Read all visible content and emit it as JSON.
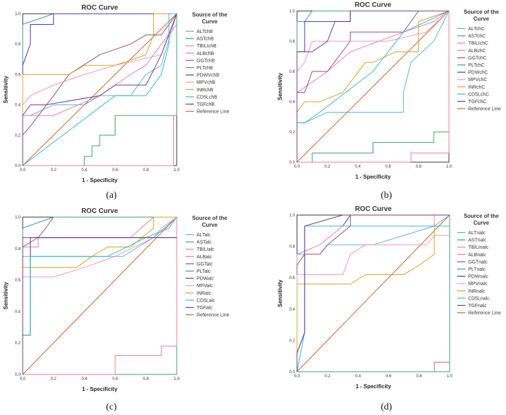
{
  "chart_data": [
    {
      "type": "line",
      "panel": "a",
      "caption": "(a)",
      "title": "ROC Curve",
      "xlabel": "1 - Specificity",
      "ylabel": "Sensitivity",
      "xlim": [
        0,
        1
      ],
      "ylim": [
        0,
        1
      ],
      "xticks": [
        "0.0",
        "0.2",
        "0.4",
        "0.6",
        "0.8",
        "1.0"
      ],
      "yticks": [
        "0.0",
        "0.2",
        "0.4",
        "0.6",
        "0.8",
        "1.0"
      ],
      "legend_title": [
        "Source of the",
        "Curve"
      ],
      "series": [
        {
          "name": "ALTchB",
          "color": "#5aaee0",
          "x": [
            0,
            0,
            0.05,
            0.2,
            0.4,
            0.5,
            0.7,
            0.75,
            0.8,
            0.9,
            1.0
          ],
          "y": [
            0,
            0.33,
            0.33,
            0.4,
            0.4,
            0.46,
            0.46,
            0.53,
            0.6,
            0.66,
            1.0
          ]
        },
        {
          "name": "ASTchB",
          "color": "#3aa06a",
          "x": [
            0,
            0.4,
            0.4,
            0.45,
            0.45,
            0.5,
            0.5,
            0.6,
            0.6,
            1.0,
            1.0
          ],
          "y": [
            0,
            0,
            0.06,
            0.06,
            0.13,
            0.13,
            0.2,
            0.2,
            0.33,
            0.33,
            1.0
          ]
        },
        {
          "name": "TBILIchB",
          "color": "#e880a0",
          "x": [
            0,
            0,
            0.2,
            0.5,
            0.7,
            0.8,
            0.9,
            1.0
          ],
          "y": [
            0,
            0.33,
            0.33,
            0.46,
            0.6,
            0.66,
            0.8,
            0.93
          ]
        },
        {
          "name": "ALBchB",
          "color": "#f07a8a",
          "x": [
            0,
            0.98,
            0.98,
            1.0
          ],
          "y": [
            0,
            0,
            0.33,
            0.33
          ]
        },
        {
          "name": "GGTchB",
          "color": "#9a4a78",
          "x": [
            0,
            0,
            0.05,
            0.2,
            0.3,
            0.5,
            0.7,
            0.8,
            0.9,
            1.0
          ],
          "y": [
            0,
            0.2,
            0.26,
            0.46,
            0.6,
            0.73,
            0.8,
            0.86,
            0.86,
            1.0
          ]
        },
        {
          "name": "PLTchB",
          "color": "#3a9a8a",
          "x": [
            0,
            0,
            0.2,
            0.2,
            1.0
          ],
          "y": [
            0,
            0.93,
            1.0,
            1.0,
            1.0
          ]
        },
        {
          "name": "PDWVchB",
          "color": "#3a3aa0",
          "x": [
            0,
            0,
            0.05,
            0.05,
            0.2,
            0.2,
            1.0
          ],
          "y": [
            0,
            0.66,
            0.8,
            0.93,
            0.93,
            1.0,
            1.0
          ]
        },
        {
          "name": "MPVchB",
          "color": "#ff90b8",
          "x": [
            0,
            0,
            0.05,
            0.2,
            0.4,
            0.6,
            0.9,
            1.0
          ],
          "y": [
            0,
            0.4,
            0.46,
            0.53,
            0.6,
            0.66,
            0.73,
            1.0
          ]
        },
        {
          "name": "INRchB",
          "color": "#d8a020",
          "x": [
            0,
            0,
            0.3,
            0.4,
            0.6,
            0.8,
            0.85,
            0.85,
            1.0
          ],
          "y": [
            0,
            0.6,
            0.6,
            0.66,
            0.66,
            0.73,
            0.86,
            1.0,
            1.0
          ]
        },
        {
          "name": "CD5LchB",
          "color": "#30b8d0",
          "x": [
            0,
            0.6,
            0.8,
            0.9,
            0.95,
            0.95,
            1.0
          ],
          "y": [
            0,
            0.46,
            0.46,
            0.6,
            0.8,
            1.0,
            1.0
          ]
        },
        {
          "name": "TGFchB",
          "color": "#6a3a8a",
          "x": [
            0,
            0,
            0.05,
            0.15,
            0.5,
            0.6,
            0.8,
            0.9,
            1.0
          ],
          "y": [
            0,
            0.33,
            0.4,
            0.4,
            0.46,
            0.53,
            0.53,
            0.73,
            1.0
          ]
        },
        {
          "name": "Reference Line",
          "color": "#c86420",
          "x": [
            0,
            1
          ],
          "y": [
            0,
            1
          ]
        }
      ]
    },
    {
      "type": "line",
      "panel": "b",
      "caption": "(b)",
      "title": "ROC Curve",
      "xlabel": "1 - Specificity",
      "ylabel": "Sensitivity",
      "xlim": [
        0,
        1
      ],
      "ylim": [
        0,
        1
      ],
      "xticks": [
        "0.0",
        "0.2",
        "0.4",
        "0.6",
        "0.8",
        "1.0"
      ],
      "yticks": [
        "0.0",
        "0.2",
        "0.4",
        "0.6",
        "0.8",
        "1.0"
      ],
      "legend_title": [
        "Source of the",
        "Curve"
      ],
      "series": [
        {
          "name": "ALTchC",
          "color": "#5aaee0",
          "x": [
            0,
            0.05,
            0.2,
            0.7,
            0.7,
            0.75,
            0.9,
            1.0
          ],
          "y": [
            0.26,
            0.26,
            0.33,
            0.33,
            0.46,
            0.66,
            0.8,
            1.0
          ]
        },
        {
          "name": "ASTchC",
          "color": "#3aa06a",
          "x": [
            0,
            0.1,
            0.1,
            0.5,
            0.5,
            0.9,
            0.9,
            1.0,
            1.0
          ],
          "y": [
            0,
            0,
            0.06,
            0.06,
            0.13,
            0.13,
            0.2,
            0.2,
            1.0
          ]
        },
        {
          "name": "TBILIchC",
          "color": "#e880a0",
          "x": [
            0,
            0,
            0.1,
            0.2,
            0.35,
            0.7,
            0.9,
            1.0
          ],
          "y": [
            0.2,
            0.46,
            0.53,
            0.6,
            0.73,
            0.86,
            0.93,
            1.0
          ]
        },
        {
          "name": "ALBchC",
          "color": "#f07a8a",
          "x": [
            0,
            0.75,
            0.75,
            1.0,
            1.0
          ],
          "y": [
            0,
            0,
            0.06,
            0.06,
            1.0
          ]
        },
        {
          "name": "GGTchC",
          "color": "#9a4a78",
          "x": [
            0,
            0,
            0.05,
            0.1,
            0.2,
            0.35,
            0.35,
            0.7,
            0.8,
            1.0
          ],
          "y": [
            0,
            0.46,
            0.46,
            0.6,
            0.6,
            0.8,
            0.86,
            0.86,
            1.0,
            1.0
          ]
        },
        {
          "name": "PLTchC",
          "color": "#3a9a8a",
          "x": [
            0,
            0,
            0.05,
            0.1,
            1.0
          ],
          "y": [
            0,
            0.93,
            0.93,
            1.0,
            1.0
          ]
        },
        {
          "name": "PDWchC",
          "color": "#3a3aa0",
          "x": [
            0,
            0,
            0.05,
            0.05,
            0.2,
            0.35,
            0.35,
            1.0
          ],
          "y": [
            0,
            0.73,
            0.73,
            0.93,
            0.93,
            0.93,
            1.0,
            1.0
          ]
        },
        {
          "name": "MPVchC",
          "color": "#ff90b8",
          "x": [
            0,
            0,
            0.05,
            0.1,
            0.3,
            0.6,
            0.85,
            1.0
          ],
          "y": [
            0,
            0.6,
            0.66,
            0.8,
            0.8,
            0.8,
            0.86,
            1.0
          ]
        },
        {
          "name": "INRchC",
          "color": "#d8a020",
          "x": [
            0,
            0.05,
            0.15,
            0.3,
            0.45,
            0.5,
            0.65,
            0.8,
            0.8,
            1.0
          ],
          "y": [
            0.33,
            0.4,
            0.4,
            0.46,
            0.66,
            0.66,
            0.73,
            0.73,
            0.93,
            1.0
          ]
        },
        {
          "name": "CD5LchC",
          "color": "#30b8d0",
          "x": [
            0,
            0.05,
            0.15,
            0.5,
            0.7,
            1.0
          ],
          "y": [
            0.26,
            0.26,
            0.33,
            0.6,
            0.86,
            1.0
          ]
        },
        {
          "name": "TGFchC",
          "color": "#6a3a8a",
          "x": [
            0,
            0,
            0.1,
            0.2,
            0.25,
            0.35,
            0.35,
            1.0
          ],
          "y": [
            0,
            0.73,
            0.73,
            0.8,
            0.93,
            0.93,
            1.0,
            1.0
          ]
        },
        {
          "name": "Reference Line",
          "color": "#c86420",
          "x": [
            0,
            1
          ],
          "y": [
            0,
            1
          ]
        }
      ]
    },
    {
      "type": "line",
      "panel": "c",
      "caption": "(c)",
      "title": "ROC Curve",
      "xlabel": "1 - Specificity",
      "ylabel": "Sensitivity",
      "xlim": [
        0,
        1
      ],
      "ylim": [
        0,
        1
      ],
      "xticks": [
        "0.0",
        "0.2",
        "0.4",
        "0.6",
        "0.8",
        "1.0"
      ],
      "yticks": [
        "0.0",
        "0.2",
        "0.4",
        "0.6",
        "0.8",
        "1.0"
      ],
      "legend_title": [
        "Source of the",
        "Curve"
      ],
      "series": [
        {
          "name": "ALTalc",
          "color": "#5aaee0",
          "x": [
            0,
            0,
            0.65,
            0.75,
            0.85,
            1.0
          ],
          "y": [
            0,
            0.75,
            0.75,
            0.81,
            0.87,
            1.0
          ]
        },
        {
          "name": "ASTalc",
          "color": "#3aa06a",
          "x": [
            0,
            1.0,
            1.0
          ],
          "y": [
            0,
            0,
            1.0
          ]
        },
        {
          "name": "TBILIalc",
          "color": "#e880a0",
          "x": [
            0,
            0,
            0.1,
            0.1,
            0.7,
            0.85,
            1.0
          ],
          "y": [
            0,
            0.81,
            0.81,
            0.87,
            0.87,
            1.0,
            1.0
          ]
        },
        {
          "name": "ALBalc",
          "color": "#f07a8a",
          "x": [
            0,
            0.6,
            0.6,
            0.9,
            0.9,
            1.0,
            1.0
          ],
          "y": [
            0,
            0,
            0.12,
            0.12,
            0.18,
            0.18,
            1.0
          ]
        },
        {
          "name": "GGTalc",
          "color": "#9a4a78",
          "x": [
            0,
            0,
            0.1,
            0.15,
            0.2,
            1.0
          ],
          "y": [
            0,
            0.81,
            0.87,
            0.93,
            1.0,
            1.0
          ]
        },
        {
          "name": "PLTalc",
          "color": "#3a9a8a",
          "x": [
            0,
            0,
            0.2,
            1.0
          ],
          "y": [
            0,
            0.93,
            1.0,
            1.0
          ]
        },
        {
          "name": "PDWalc",
          "color": "#3a3aa0",
          "x": [
            0,
            0,
            0.05,
            0.05,
            1.0
          ],
          "y": [
            0,
            0.25,
            0.25,
            0.87,
            0.87
          ]
        },
        {
          "name": "MPValc",
          "color": "#ff90b8",
          "x": [
            0,
            0,
            0.2,
            0.4,
            0.6,
            0.85,
            0.9,
            1.0
          ],
          "y": [
            0,
            0.62,
            0.62,
            0.68,
            0.75,
            0.87,
            0.93,
            1.0
          ]
        },
        {
          "name": "INRalc",
          "color": "#d8a020",
          "x": [
            0,
            0,
            0.35,
            0.45,
            0.55,
            0.7,
            0.85,
            0.85,
            1.0
          ],
          "y": [
            0,
            0.68,
            0.68,
            0.75,
            0.81,
            0.81,
            0.93,
            1.0,
            1.0
          ]
        },
        {
          "name": "CD5Lalc",
          "color": "#30b8d0",
          "x": [
            0,
            0,
            0.05,
            0.05,
            0.55,
            0.8,
            0.95,
            1.0
          ],
          "y": [
            0,
            0.25,
            0.25,
            0.75,
            0.75,
            0.87,
            0.93,
            1.0
          ]
        },
        {
          "name": "TGFalc",
          "color": "#6a3a8a",
          "x": [
            0,
            0,
            1.0
          ],
          "y": [
            0,
            0.87,
            0.87
          ]
        },
        {
          "name": "Reference Line",
          "color": "#c86420",
          "x": [
            0,
            1
          ],
          "y": [
            0,
            1
          ]
        }
      ]
    },
    {
      "type": "line",
      "panel": "d",
      "caption": "(d)",
      "title": "ROC Curve",
      "xlabel": "1 - Specificity",
      "ylabel": "Sensitivity",
      "xlim": [
        0,
        1
      ],
      "ylim": [
        0,
        1
      ],
      "xticks": [
        "0.0",
        "0.2",
        "0.4",
        "0.6",
        "0.8",
        "1.0"
      ],
      "yticks": [
        "0.0",
        "0.2",
        "0.4",
        "0.6",
        "0.8",
        "1.0"
      ],
      "legend_title": [
        "Source of the",
        "Curve"
      ],
      "series": [
        {
          "name": "ALTnalc",
          "color": "#5aaee0",
          "x": [
            0,
            0,
            0.15,
            0.2,
            0.5,
            0.7,
            0.9,
            1.0
          ],
          "y": [
            0,
            0.75,
            0.75,
            0.81,
            0.81,
            0.87,
            0.93,
            1.0
          ]
        },
        {
          "name": "ASTnalc",
          "color": "#3aa06a",
          "x": [
            0,
            0.9,
            0.9,
            1.0,
            1.0
          ],
          "y": [
            0,
            0,
            0.06,
            0.06,
            1.0
          ]
        },
        {
          "name": "TBILInalc",
          "color": "#e880a0",
          "x": [
            0,
            0,
            0.15,
            0.3,
            0.9,
            0.9,
            1.0
          ],
          "y": [
            0,
            0.75,
            0.81,
            0.93,
            0.93,
            1.0,
            1.0
          ]
        },
        {
          "name": "ALBnalc",
          "color": "#f07a8a",
          "x": [
            0,
            0.9,
            0.9,
            1.0,
            1.0
          ],
          "y": [
            0,
            0,
            0.06,
            0.06,
            1.0
          ]
        },
        {
          "name": "GGTnalc",
          "color": "#9a4a78",
          "x": [
            0,
            0,
            0.05,
            0.15,
            0.2,
            0.35,
            0.35,
            1.0
          ],
          "y": [
            0,
            0.68,
            0.75,
            0.75,
            0.81,
            0.93,
            1.0,
            1.0
          ]
        },
        {
          "name": "PLTnalc",
          "color": "#3a9a8a",
          "x": [
            0,
            1.0,
            1.0
          ],
          "y": [
            0,
            0,
            1.0
          ]
        },
        {
          "name": "PDWnalc",
          "color": "#3a3aa0",
          "x": [
            0,
            0,
            0.05,
            0.05,
            0.3,
            0.35,
            1.0
          ],
          "y": [
            0,
            0.12,
            0.25,
            0.93,
            0.93,
            1.0,
            1.0
          ]
        },
        {
          "name": "MPVnalc",
          "color": "#ff90b8",
          "x": [
            0,
            0,
            0.3,
            0.35,
            0.45,
            0.85,
            0.9,
            1.0
          ],
          "y": [
            0,
            0.62,
            0.62,
            0.75,
            0.81,
            0.81,
            0.87,
            0.87
          ]
        },
        {
          "name": "INRnalc",
          "color": "#d8a020",
          "x": [
            0,
            0,
            0.35,
            0.45,
            0.7,
            0.8,
            0.9,
            0.9,
            1.0
          ],
          "y": [
            0,
            0.56,
            0.56,
            0.62,
            0.62,
            0.68,
            0.75,
            0.93,
            0.93
          ]
        },
        {
          "name": "CD5Lnalc",
          "color": "#30b8d0",
          "x": [
            0,
            0.05,
            0.05,
            0.3,
            1.0
          ],
          "y": [
            0,
            0.25,
            0.93,
            0.93,
            0.93
          ]
        },
        {
          "name": "TGFnalc",
          "color": "#6a3a8a",
          "x": [
            0,
            0,
            0.05,
            0.05,
            0.3,
            1.0
          ],
          "y": [
            0,
            0.12,
            0.25,
            0.93,
            1.0,
            1.0
          ]
        },
        {
          "name": "Reference Line",
          "color": "#c86420",
          "x": [
            0,
            1
          ],
          "y": [
            0,
            1
          ]
        }
      ]
    }
  ]
}
